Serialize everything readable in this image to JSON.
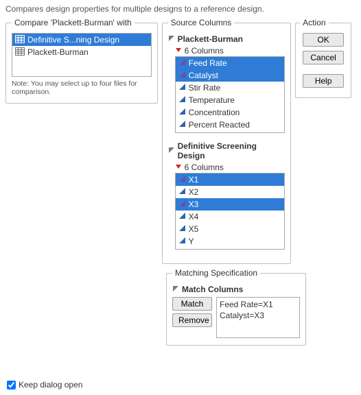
{
  "description": "Compares design properties for multiple designs to a reference design.",
  "compare": {
    "legend": "Compare 'Plackett-Burman' with",
    "items": [
      {
        "label": "Definitive S...ning Design",
        "selected": true,
        "icon": "datatable-icon"
      },
      {
        "label": "Plackett-Burman",
        "selected": false,
        "icon": "datatable-icon"
      }
    ],
    "note": "Note: You may select up to four files for comparison.",
    "icon_colors": {
      "selected": "#ffffff",
      "unselected": "#6e6e6e"
    }
  },
  "source": {
    "legend": "Source Columns",
    "header_icon_color": "#7a7a7a",
    "disclosure_color": "#cc2a2a",
    "cont_icon_color": "#2e65b0",
    "selected_cont_icon_color": "#754a9e",
    "groups": [
      {
        "title": "Plackett-Burman",
        "subheader": "6 Columns",
        "columns": [
          {
            "label": "Feed Rate",
            "selected": true
          },
          {
            "label": "Catalyst",
            "selected": true
          },
          {
            "label": "Stir Rate",
            "selected": false
          },
          {
            "label": "Temperature",
            "selected": false
          },
          {
            "label": "Concentration",
            "selected": false
          },
          {
            "label": "Percent Reacted",
            "selected": false
          }
        ]
      },
      {
        "title": "Definitive Screening Design",
        "subheader": "6 Columns",
        "columns": [
          {
            "label": "X1",
            "selected": true
          },
          {
            "label": "X2",
            "selected": false
          },
          {
            "label": "X3",
            "selected": true
          },
          {
            "label": "X4",
            "selected": false
          },
          {
            "label": "X5",
            "selected": false
          },
          {
            "label": "Y",
            "selected": false
          }
        ]
      }
    ]
  },
  "action": {
    "legend": "Action",
    "ok": "OK",
    "cancel": "Cancel",
    "help": "Help"
  },
  "matching": {
    "legend": "Matching Specification",
    "header": "Match Columns",
    "match_btn": "Match",
    "remove_btn": "Remove",
    "entries": [
      "Feed Rate=X1",
      "Catalyst=X3"
    ]
  },
  "keep_open": {
    "label": "Keep dialog open",
    "checked": true
  },
  "colors": {
    "selection_bg": "#2e7cd6",
    "border": "#a8a8a8",
    "fieldset_border": "#bfbfbf"
  }
}
